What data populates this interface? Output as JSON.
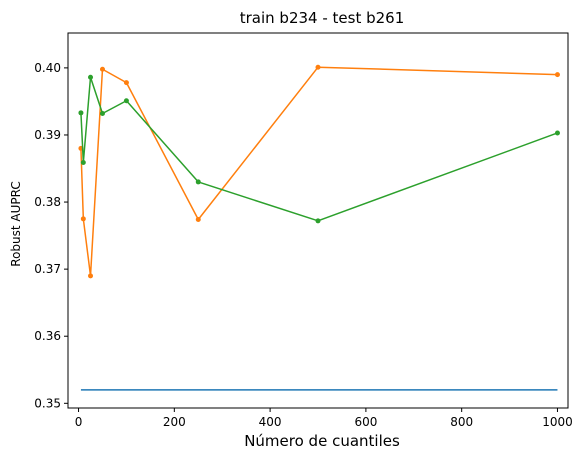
{
  "chart_data": {
    "type": "line",
    "title": "train b234 - test b261",
    "xlabel": "Número de cuantiles",
    "ylabel": "Robust AUPRC",
    "xlim": [
      -22,
      1022
    ],
    "ylim": [
      0.3493,
      0.4052
    ],
    "xticks": [
      0,
      200,
      400,
      600,
      800,
      1000
    ],
    "xtick_labels": [
      "0",
      "200",
      "400",
      "600",
      "800",
      "1000"
    ],
    "yticks": [
      0.35,
      0.36,
      0.37,
      0.38,
      0.39,
      0.4
    ],
    "ytick_labels": [
      "0.35",
      "0.36",
      "0.37",
      "0.38",
      "0.39",
      "0.40"
    ],
    "grid": false,
    "legend": false,
    "series": [
      {
        "color": "#1f77b4",
        "marker": false,
        "x": [
          5,
          1000
        ],
        "y": [
          0.352,
          0.352
        ]
      },
      {
        "color": "#ff7f0e",
        "marker": true,
        "x": [
          5,
          10,
          25,
          50,
          100,
          250,
          500,
          1000
        ],
        "y": [
          0.388,
          0.3775,
          0.369,
          0.3998,
          0.3978,
          0.3774,
          0.4001,
          0.399
        ]
      },
      {
        "color": "#2ca02c",
        "marker": true,
        "x": [
          5,
          10,
          25,
          50,
          100,
          250,
          500,
          1000
        ],
        "y": [
          0.3933,
          0.3859,
          0.3986,
          0.3932,
          0.3951,
          0.383,
          0.3772,
          0.3903
        ]
      }
    ]
  }
}
